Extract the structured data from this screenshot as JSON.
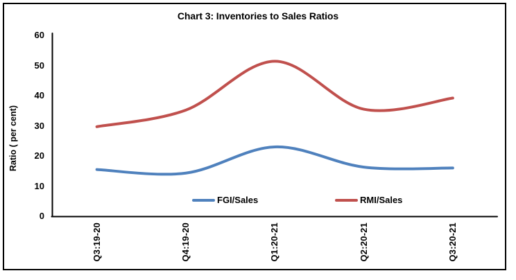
{
  "chart_data": {
    "type": "line",
    "title": "Chart 3: Inventories to Sales Ratios",
    "ylabel": "Ratio ( per cent)",
    "categories": [
      "Q3:19-20",
      "Q4:19-20",
      "Q1:20-21",
      "Q2:20-21",
      "Q3:20-21"
    ],
    "series": [
      {
        "name": "FGI/Sales",
        "color": "#4F81BD",
        "values": [
          15.5,
          14.3,
          23.0,
          16.3,
          16.0
        ]
      },
      {
        "name": "RMI/Sales",
        "color": "#C0504D",
        "values": [
          29.7,
          35.2,
          51.4,
          35.5,
          39.2
        ]
      }
    ],
    "ylim": [
      0,
      60
    ],
    "yticks": [
      0,
      10,
      20,
      30,
      40,
      50,
      60
    ],
    "grid": false,
    "line_smoothing": true,
    "legend_position": "bottom-inside",
    "axis_color": "#000000",
    "text_color": "#000000"
  }
}
